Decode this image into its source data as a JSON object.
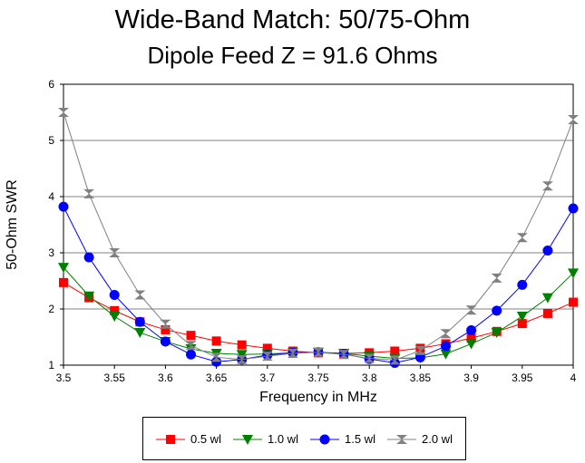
{
  "chart_data": {
    "type": "line",
    "title": "Wide-Band Match:  50/75-Ohm",
    "subtitle": "Dipole Feed Z = 91.6 Ohms",
    "xlabel": "Frequency in MHz",
    "ylabel": "50-Ohm SWR",
    "xlim": [
      3.5,
      4.0
    ],
    "ylim": [
      1,
      6
    ],
    "grid": true,
    "legend_position": "bottom",
    "x_ticks": [
      "3.5",
      "3.55",
      "3.6",
      "3.65",
      "3.7",
      "3.75",
      "3.8",
      "3.85",
      "3.9",
      "3.95",
      "4"
    ],
    "y_ticks": [
      "1",
      "2",
      "3",
      "4",
      "5",
      "6"
    ],
    "x": [
      3.5,
      3.525,
      3.55,
      3.575,
      3.6,
      3.625,
      3.65,
      3.675,
      3.7,
      3.725,
      3.75,
      3.775,
      3.8,
      3.825,
      3.85,
      3.875,
      3.9,
      3.925,
      3.95,
      3.975,
      4.0
    ],
    "series": [
      {
        "name": "0.5 wl",
        "color": "#ff0000",
        "marker": "square",
        "values": [
          2.47,
          2.2,
          1.97,
          1.77,
          1.63,
          1.53,
          1.43,
          1.36,
          1.3,
          1.25,
          1.22,
          1.21,
          1.22,
          1.25,
          1.3,
          1.38,
          1.48,
          1.6,
          1.74,
          1.92,
          2.12
        ]
      },
      {
        "name": "1.0 wl",
        "color": "#008000",
        "marker": "triangle-down",
        "values": [
          2.74,
          2.23,
          1.87,
          1.58,
          1.42,
          1.29,
          1.21,
          1.19,
          1.2,
          1.22,
          1.23,
          1.21,
          1.16,
          1.12,
          1.13,
          1.2,
          1.38,
          1.58,
          1.87,
          2.2,
          2.64
        ]
      },
      {
        "name": "1.5 wl",
        "color": "#0000ff",
        "marker": "circle",
        "values": [
          3.82,
          2.92,
          2.25,
          1.77,
          1.42,
          1.19,
          1.06,
          1.1,
          1.18,
          1.22,
          1.23,
          1.2,
          1.11,
          1.04,
          1.14,
          1.34,
          1.62,
          1.97,
          2.43,
          3.04,
          3.79
        ]
      },
      {
        "name": "2.0 wl",
        "color": "#808080",
        "marker": "bowtie",
        "values": [
          5.5,
          4.05,
          3.0,
          2.25,
          1.73,
          1.35,
          1.14,
          1.1,
          1.16,
          1.21,
          1.23,
          1.19,
          1.12,
          1.09,
          1.26,
          1.56,
          1.98,
          2.55,
          3.27,
          4.19,
          5.37
        ]
      }
    ]
  }
}
